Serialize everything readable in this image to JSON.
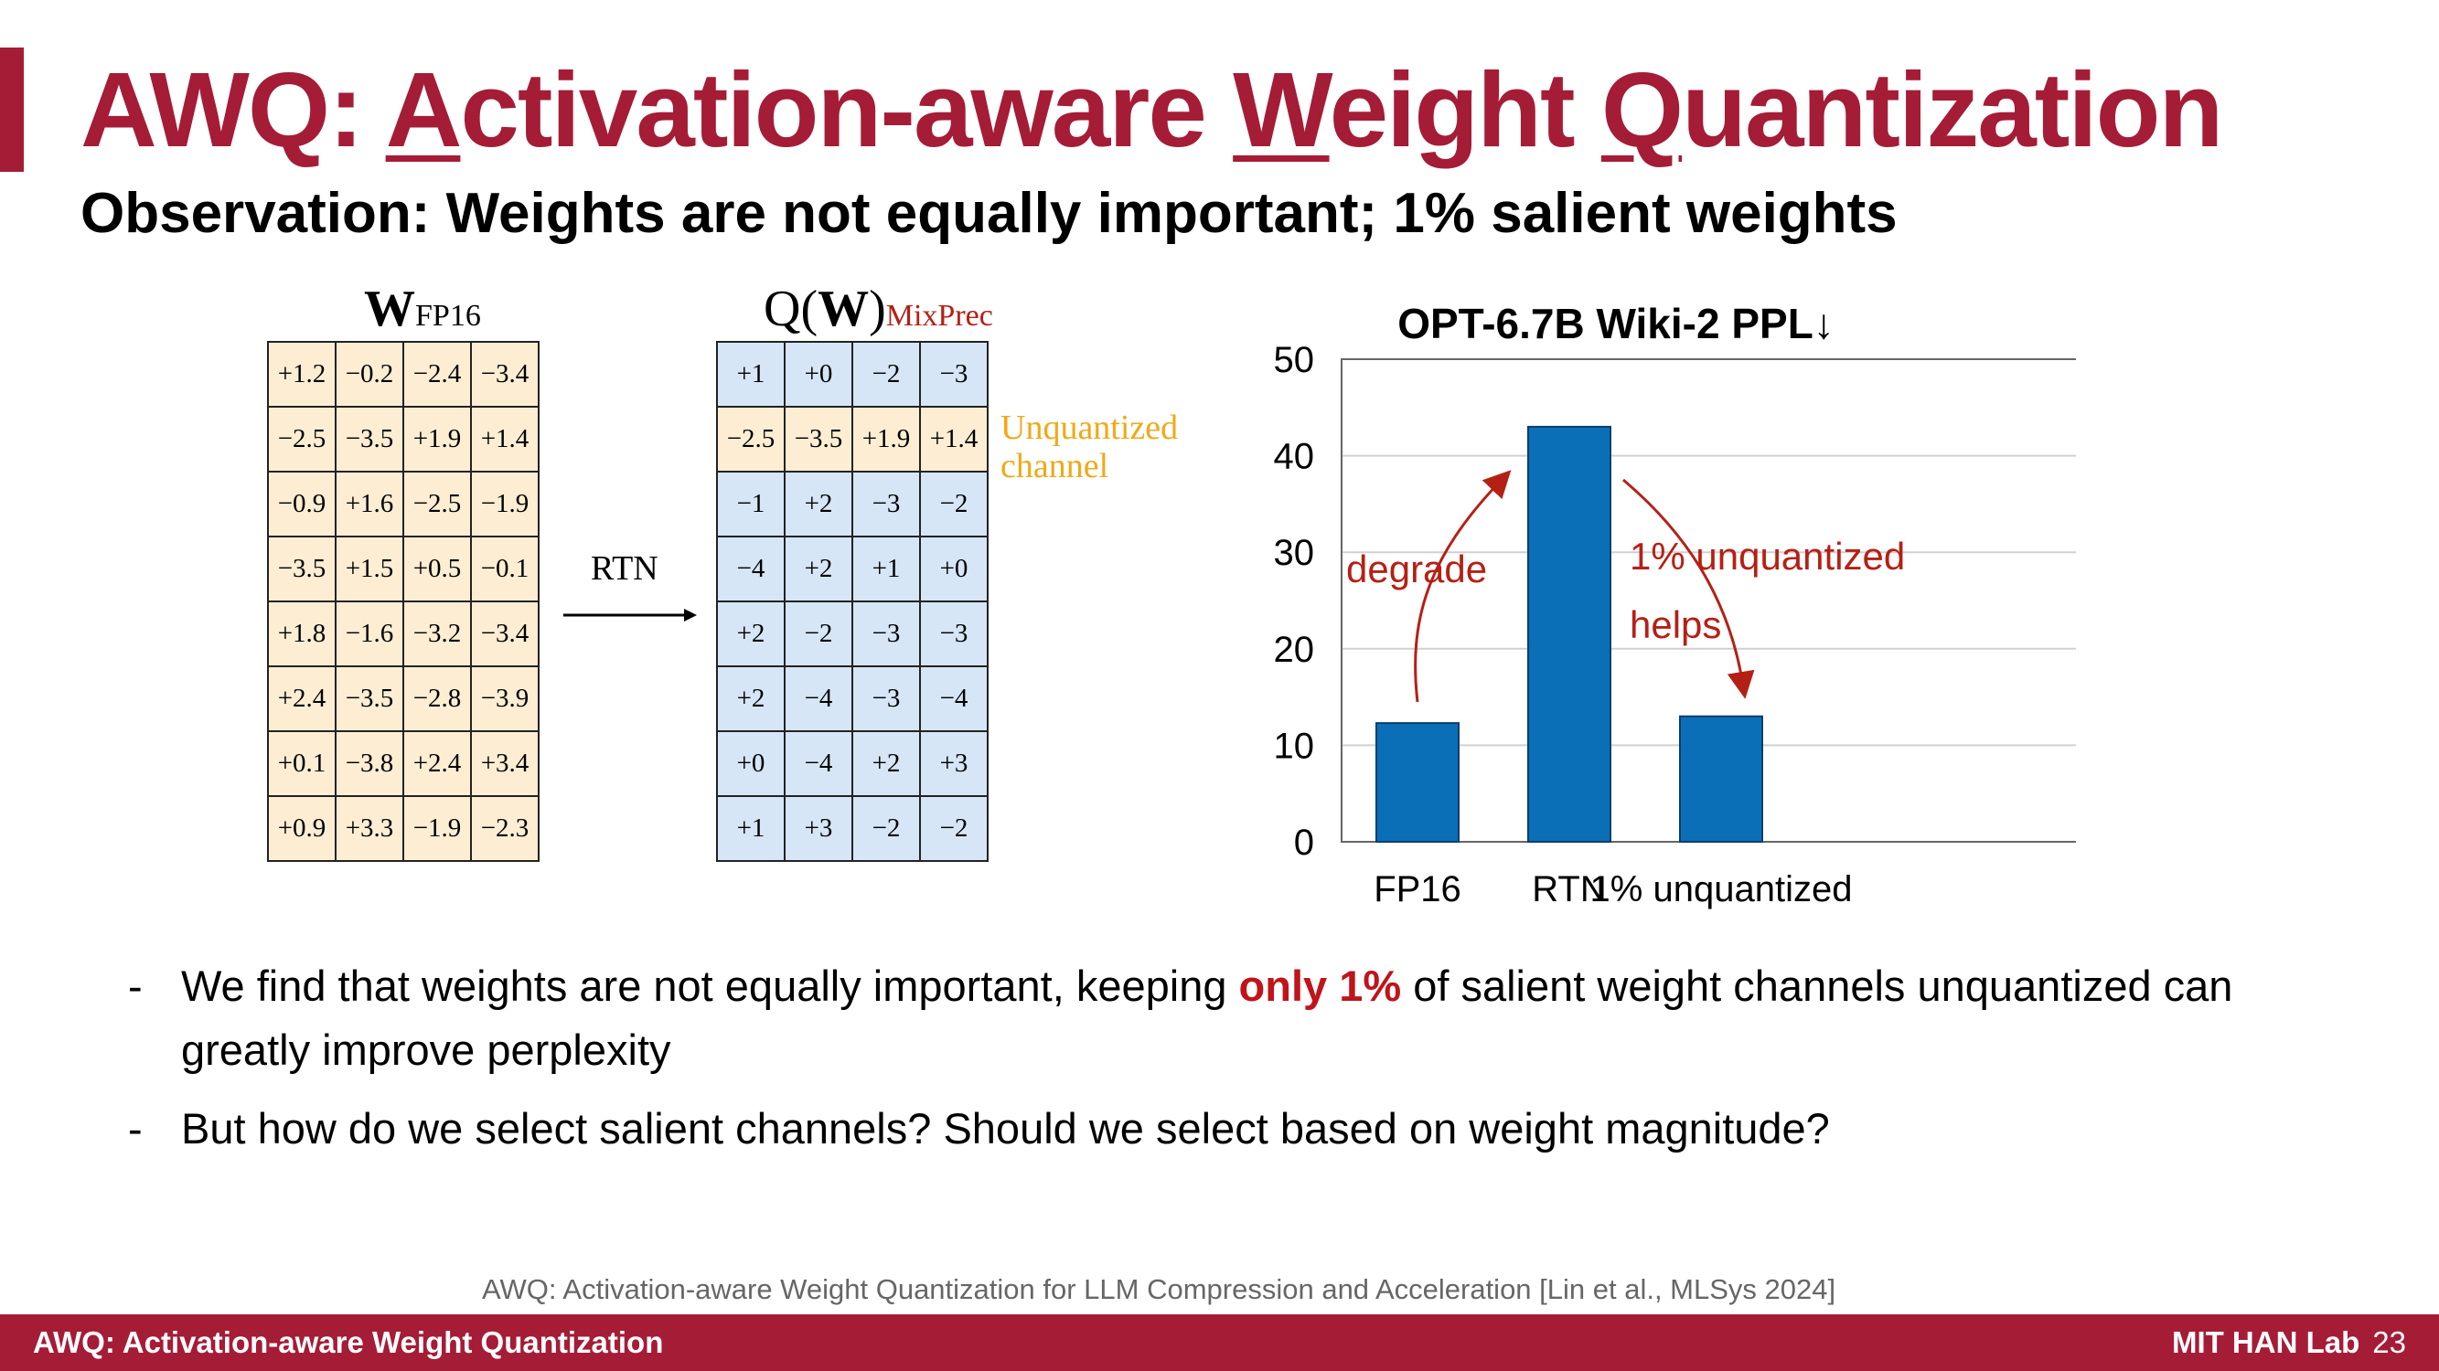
{
  "title": {
    "prefix": "AWQ: ",
    "a_underlined": "A",
    "part1": "ctivation-aware ",
    "w_underlined": "W",
    "part2": "eight ",
    "q_underlined": "Q",
    "part3": "uantization"
  },
  "subtitle": "Observation: Weights are not equally important; 1% salient weights",
  "matrix_a": {
    "label_main": "W",
    "label_sub": "FP16",
    "rows": [
      [
        "+1.2",
        "−0.2",
        "−2.4",
        "−3.4"
      ],
      [
        "−2.5",
        "−3.5",
        "+1.9",
        "+1.4"
      ],
      [
        "−0.9",
        "+1.6",
        "−2.5",
        "−1.9"
      ],
      [
        "−3.5",
        "+1.5",
        "+0.5",
        "−0.1"
      ],
      [
        "+1.8",
        "−1.6",
        "−3.2",
        "−3.4"
      ],
      [
        "+2.4",
        "−3.5",
        "−2.8",
        "−3.9"
      ],
      [
        "+0.1",
        "−3.8",
        "+2.4",
        "+3.4"
      ],
      [
        "+0.9",
        "+3.3",
        "−1.9",
        "−2.3"
      ]
    ]
  },
  "matrix_b": {
    "label_q": "Q(",
    "label_w": "W",
    "label_close": ")",
    "label_sub": "MixPrec",
    "unquantized_row": 1,
    "rows": [
      [
        "+1",
        "+0",
        "−2",
        "−3"
      ],
      [
        "−2.5",
        "−3.5",
        "+1.9",
        "+1.4"
      ],
      [
        "−1",
        "+2",
        "−3",
        "−2"
      ],
      [
        "−4",
        "+2",
        "+1",
        "+0"
      ],
      [
        "+2",
        "−2",
        "−3",
        "−3"
      ],
      [
        "+2",
        "−4",
        "−3",
        "−4"
      ],
      [
        "+0",
        "−4",
        "+2",
        "+3"
      ],
      [
        "+1",
        "+3",
        "−2",
        "−2"
      ]
    ]
  },
  "unquantized_label_line1": "Unquantized",
  "unquantized_label_line2": "channel",
  "rtn_label": "RTN",
  "chart_data": {
    "type": "bar",
    "title": "OPT-6.7B Wiki-2 PPL↓",
    "categories": [
      "FP16",
      "RTN",
      "1% unquantized"
    ],
    "values": [
      12.3,
      43.0,
      13.0
    ],
    "ylim": [
      0,
      50
    ],
    "yticks": [
      0,
      10,
      20,
      30,
      40,
      50
    ],
    "grid": true,
    "bar_color": "#0b6fb8",
    "annotations": {
      "degrade": "degrade",
      "helps_line1": "1% unquantized",
      "helps_line2": "helps"
    },
    "annotation_color": "#b52015"
  },
  "bullets": [
    {
      "dash": "-",
      "pre": "We find that weights are not equally important, keeping ",
      "highlight": "only 1%",
      "post": " of salient weight channels unquantized can greatly improve perplexity"
    },
    {
      "dash": "-",
      "text": "But how do we select salient channels? Should we select based on weight magnitude?"
    }
  ],
  "citation": "AWQ: Activation-aware Weight Quantization for LLM Compression and Acceleration  [Lin et al., MLSys 2024]",
  "footer": {
    "left": "AWQ: Activation-aware Weight Quantization",
    "lab": "MIT HAN Lab",
    "page": "23"
  },
  "colors": {
    "brand": "#a51c36",
    "matrix_tan": "#fdeed3",
    "matrix_blue": "#d6e6f6",
    "unquantized_label": "#f0a91a"
  }
}
